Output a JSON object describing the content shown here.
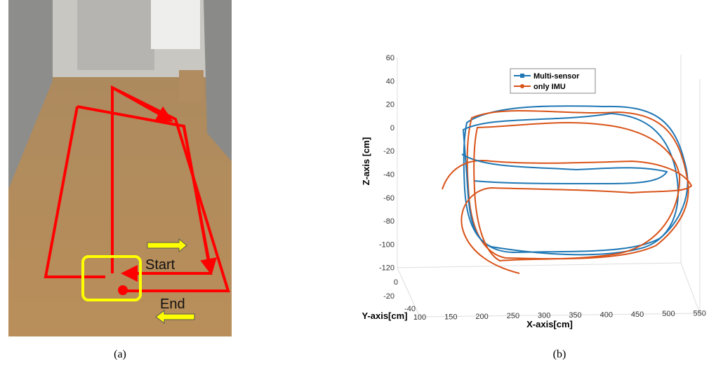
{
  "panel_a": {
    "start_label": "Start",
    "end_label": "End",
    "caption": "(a)"
  },
  "panel_b": {
    "z_axis_label": "Z-axis [cm]",
    "y_axis_label": "Y-axis[cm]",
    "x_axis_label": "X-axis[cm]",
    "z_ticks": [
      "60",
      "40",
      "20",
      "0",
      "-20",
      "-40",
      "-60",
      "-80",
      "-100",
      "-120"
    ],
    "y_ticks": [
      "0",
      "-20",
      "-40"
    ],
    "x_ticks": [
      "100",
      "150",
      "200",
      "250",
      "300",
      "350",
      "400",
      "450",
      "500",
      "550"
    ],
    "legend": [
      "Multi-sensor",
      "only IMU"
    ],
    "caption": "(b)"
  }
}
